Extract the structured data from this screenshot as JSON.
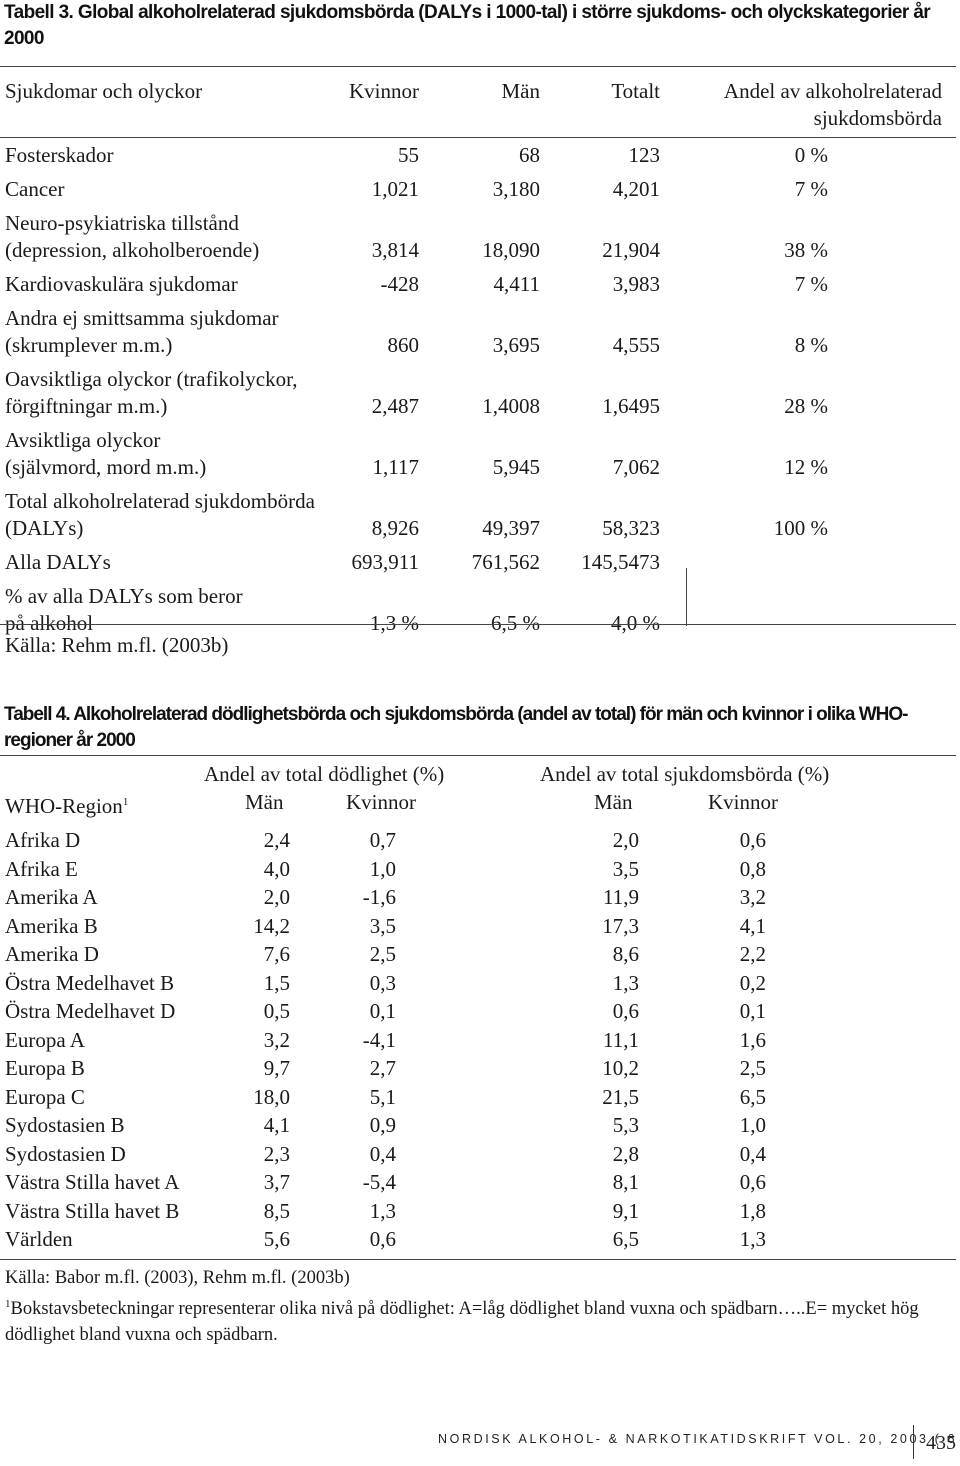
{
  "table3": {
    "caption": "Tabell 3. Global alkoholrelaterad sjukdomsbörda (DALYs i 1000-tal) i större sjukdoms- och olyckskategorier år 2000",
    "headers": {
      "category": "Sjukdomar och olyckor",
      "women": "Kvinnor",
      "men": "Män",
      "total": "Totalt",
      "share_line1": "Andel av alkoholrelaterad",
      "share_line2": "sjukdomsbörda"
    },
    "rows": [
      {
        "label": [
          "Fosterskador"
        ],
        "women": "55",
        "men": "68",
        "total": "123",
        "share": "0 %"
      },
      {
        "label": [
          "Cancer"
        ],
        "women": "1,021",
        "men": "3,180",
        "total": "4,201",
        "share": "7 %"
      },
      {
        "label": [
          "Neuro-psykiatriska tillstånd",
          "(depression, alkoholberoende)"
        ],
        "women": "3,814",
        "men": "18,090",
        "total": "21,904",
        "share": "38 %"
      },
      {
        "label": [
          "Kardiovaskulära sjukdomar"
        ],
        "women": "-428",
        "men": "4,411",
        "total": "3,983",
        "share": "7 %"
      },
      {
        "label": [
          "Andra ej smittsamma sjukdomar",
          "(skrumplever m.m.)"
        ],
        "women": "860",
        "men": "3,695",
        "total": "4,555",
        "share": "8 %"
      },
      {
        "label": [
          "Oavsiktliga olyckor (trafikolyckor,",
          "förgiftningar m.m.)"
        ],
        "women": "2,487",
        "men": "1,4008",
        "total": "1,6495",
        "share": "28 %"
      },
      {
        "label": [
          "Avsiktliga olyckor",
          "(självmord, mord m.m.)"
        ],
        "women": "1,117",
        "men": "5,945",
        "total": "7,062",
        "share": "12 %"
      },
      {
        "label": [
          "Total alkoholrelaterad sjukdombörda",
          "(DALYs)"
        ],
        "women": "8,926",
        "men": "49,397",
        "total": "58,323",
        "share": "100 %"
      },
      {
        "label": [
          "Alla  DALYs"
        ],
        "women": "693,911",
        "men": "761,562",
        "total": "145,5473",
        "share": ""
      },
      {
        "label": [
          "% av alla DALYs som beror",
          "på  alkohol"
        ],
        "women": "1,3 %",
        "men": "6,5 %",
        "total": "4,0 %",
        "share": ""
      }
    ],
    "source": "Källa: Rehm m.fl. (2003b)"
  },
  "table4": {
    "caption": "Tabell 4. Alkoholrelaterad dödlighetsbörda och sjukdomsbörda (andel av total) för män och kvinnor i olika WHO-regioner år 2000",
    "group1": "Andel av total dödlighet (%)",
    "group2": "Andel av total sjukdomsbörda (%)",
    "region_header": "WHO-Region",
    "region_sup": "1",
    "men": "Män",
    "women": "Kvinnor",
    "rows": [
      {
        "region": "Afrika D",
        "d_m": "2,4",
        "d_w": "0,7",
        "s_m": "2,0",
        "s_w": "0,6"
      },
      {
        "region": "Afrika E",
        "d_m": "4,0",
        "d_w": "1,0",
        "s_m": "3,5",
        "s_w": "0,8"
      },
      {
        "region": "Amerika A",
        "d_m": "2,0",
        "d_w": "-1,6",
        "s_m": "11,9",
        "s_w": "3,2"
      },
      {
        "region": "Amerika B",
        "d_m": "14,2",
        "d_w": "3,5",
        "s_m": "17,3",
        "s_w": "4,1"
      },
      {
        "region": "Amerika D",
        "d_m": "7,6",
        "d_w": "2,5",
        "s_m": "8,6",
        "s_w": "2,2"
      },
      {
        "region": "Östra Medelhavet B",
        "d_m": "1,5",
        "d_w": "0,3",
        "s_m": "1,3",
        "s_w": "0,2"
      },
      {
        "region": "Östra Medelhavet D",
        "d_m": "0,5",
        "d_w": "0,1",
        "s_m": "0,6",
        "s_w": "0,1"
      },
      {
        "region": "Europa A",
        "d_m": "3,2",
        "d_w": "-4,1",
        "s_m": "11,1",
        "s_w": "1,6"
      },
      {
        "region": "Europa B",
        "d_m": "9,7",
        "d_w": "2,7",
        "s_m": "10,2",
        "s_w": "2,5"
      },
      {
        "region": "Europa C",
        "d_m": "18,0",
        "d_w": "5,1",
        "s_m": "21,5",
        "s_w": "6,5"
      },
      {
        "region": "Sydostasien B",
        "d_m": "4,1",
        "d_w": "0,9",
        "s_m": "5,3",
        "s_w": "1,0"
      },
      {
        "region": "Sydostasien D",
        "d_m": "2,3",
        "d_w": "0,4",
        "s_m": "2,8",
        "s_w": "0,4"
      },
      {
        "region": "Västra Stilla havet A",
        "d_m": "3,7",
        "d_w": "-5,4",
        "s_m": "8,1",
        "s_w": "0,6"
      },
      {
        "region": "Västra Stilla havet B",
        "d_m": "8,5",
        "d_w": "1,3",
        "s_m": "9,1",
        "s_w": "1,8"
      },
      {
        "region": "Världen",
        "d_m": "5,6",
        "d_w": "0,6",
        "s_m": "6,5",
        "s_w": "1,3"
      }
    ],
    "source": "Källa: Babor m.fl. (2003), Rehm m.fl. (2003b)",
    "footnote_mark": "1",
    "footnote": "Bokstavsbeteckningar representerar olika nivå på dödlighet: A=låg dödlighet bland vuxna och spädbarn…..E= mycket hög dödlighet bland vuxna och spädbarn."
  },
  "footer": {
    "journal": "NORDISK ALKOHOL- & NARKOTIKATIDSKRIFT   VOL. 20, 2003 ( 6 )",
    "page": "435"
  }
}
